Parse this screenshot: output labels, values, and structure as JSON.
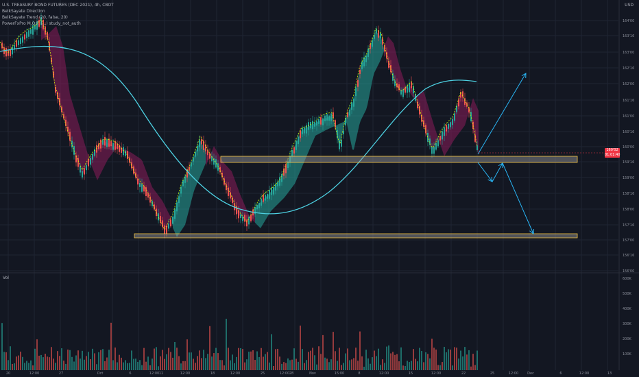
{
  "chart": {
    "symbol_title": "U.S. TREASURY BOND FUTURES (DEC 2021), 4h, CBOT",
    "indicators": [
      "BelkSayate Direction",
      "BelkSayate Trend (20, false, 20)",
      "PowerFxPro M.O.F. (...) study_not_auth"
    ],
    "volume_label": "Vol",
    "currency_label": "USD",
    "price_ticks": [
      "164'00",
      "163'16",
      "163'00",
      "162'16",
      "162'00",
      "161'16",
      "161'00",
      "160'16",
      "160'00",
      "159'16",
      "159'00",
      "158'16",
      "158'00",
      "157'16",
      "157'00",
      "156'16",
      "156'00"
    ],
    "last_price": [
      "160'02",
      "01:01:40"
    ],
    "volume_ticks": [
      "600K",
      "500K",
      "400K",
      "300K",
      "200K",
      "100K"
    ],
    "time_ticks": [
      "20",
      "12:00",
      "27",
      "Oct",
      "6",
      "12:00",
      "11",
      "12:00",
      "18",
      "12:00",
      "25",
      "12:00",
      "28",
      "Nov",
      "15:00",
      "8",
      "12:00",
      "15",
      "12:00",
      "22",
      "25",
      "12:00",
      "Dec",
      "6",
      "12:00",
      "13"
    ]
  },
  "colors": {
    "background": "#131722",
    "grid": "#1f2433",
    "candle_up": "#26a69a",
    "candle_down": "#ef5350",
    "cloud_up": "#26a69a",
    "cloud_down": "#8a1c5a",
    "moving_average": "#4dd0e1",
    "signal_line": "#c6ff00",
    "zone_fill": "#9e9e9e",
    "zone_border": "#f5c542",
    "arrows": "#29b6f6",
    "price_tag": "#f23645"
  }
}
